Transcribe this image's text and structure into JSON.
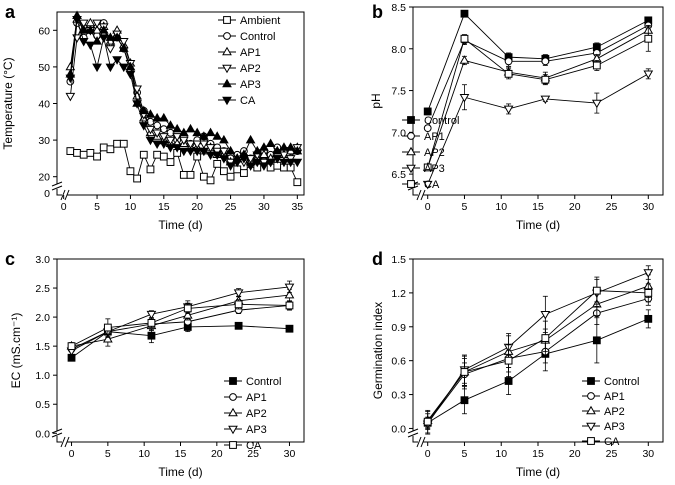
{
  "chart_data": [
    {
      "panel": "a",
      "type": "line",
      "xlabel": "Time (d)",
      "ylabel": "Temperature (°C)",
      "xlim": [
        -1,
        36
      ],
      "ylim": [
        15,
        65
      ],
      "xticks": [
        0,
        5,
        10,
        15,
        20,
        25,
        30,
        35
      ],
      "yticks": [
        20,
        30,
        40,
        50,
        60
      ],
      "ybreak_label": "0",
      "legend": "top-right",
      "x": [
        1,
        2,
        3,
        4,
        5,
        6,
        7,
        8,
        9,
        10,
        11,
        12,
        13,
        14,
        15,
        16,
        17,
        18,
        19,
        20,
        21,
        22,
        23,
        24,
        25,
        26,
        27,
        28,
        29,
        30,
        31,
        32,
        33,
        34,
        35
      ],
      "series": [
        {
          "name": "Ambient",
          "marker": "square-open",
          "values": [
            27,
            26.5,
            26,
            26.5,
            25.5,
            28,
            27.5,
            29,
            29,
            21.5,
            19.5,
            26,
            22,
            26,
            25.5,
            24,
            26.5,
            20.5,
            20.5,
            25.5,
            20,
            19,
            23.5,
            21.5,
            20,
            22,
            21,
            23.5,
            22.5,
            26,
            22.5,
            23,
            22.5,
            22.5,
            18.5
          ]
        },
        {
          "name": "Control",
          "marker": "circle-open",
          "values": [
            46,
            62,
            58,
            60,
            58.5,
            62,
            56,
            58,
            55,
            49,
            43,
            38,
            35,
            34,
            33,
            32,
            30,
            31,
            29,
            30,
            31,
            29,
            28,
            27,
            25,
            26,
            27,
            25,
            26,
            27,
            26,
            28,
            27,
            27,
            27
          ]
        },
        {
          "name": "AP1",
          "marker": "triangle-open",
          "values": [
            50,
            63,
            60,
            62,
            60,
            61,
            57,
            60,
            56,
            51,
            42,
            36,
            32,
            31,
            30,
            29,
            29,
            29,
            28,
            28,
            27,
            28,
            26,
            26,
            24,
            25,
            26,
            24,
            25,
            26,
            25,
            27,
            26,
            27,
            28
          ]
        },
        {
          "name": "AP2",
          "marker": "triangle-down-open",
          "values": [
            42,
            58,
            62,
            60,
            62,
            61,
            55,
            59,
            57,
            51,
            44,
            37,
            33,
            32,
            31,
            30,
            31,
            30,
            29,
            29,
            29,
            28,
            27,
            27,
            24,
            24,
            24,
            25,
            26,
            24,
            24,
            25,
            26,
            25,
            28
          ]
        },
        {
          "name": "AP3",
          "marker": "triangle-filled",
          "values": [
            48,
            64,
            60,
            60,
            57,
            60,
            58,
            58,
            55,
            50,
            40,
            38,
            37,
            36,
            36,
            34,
            33,
            32,
            33,
            32,
            31,
            32,
            31,
            30,
            27,
            25,
            26,
            30,
            27,
            28,
            29,
            27,
            28,
            28,
            27
          ]
        },
        {
          "name": "CA",
          "marker": "triangle-down-filled",
          "values": [
            47,
            63,
            57,
            56,
            50,
            58,
            50,
            52,
            50,
            48,
            40,
            34,
            30,
            29,
            29,
            28,
            28,
            27,
            27,
            27,
            27,
            26,
            26,
            25,
            23,
            24,
            25,
            23,
            24,
            23,
            24,
            25,
            24,
            24,
            24
          ]
        }
      ]
    },
    {
      "panel": "b",
      "type": "line",
      "xlabel": "Time (d)",
      "ylabel": "pH",
      "xlim": [
        -2,
        32
      ],
      "ylim": [
        6.25,
        8.5
      ],
      "xticks": [
        0,
        5,
        10,
        15,
        20,
        25,
        30
      ],
      "yticks": [
        6.5,
        7.0,
        7.5,
        8.0,
        8.5
      ],
      "legend": "bottom-left",
      "x": [
        0,
        5,
        11,
        16,
        23,
        30
      ],
      "series": [
        {
          "name": "Control",
          "marker": "square-filled",
          "values": [
            7.25,
            8.42,
            7.9,
            7.88,
            8.02,
            8.34
          ],
          "errors": [
            0.04,
            0.02,
            0.05,
            0.05,
            0.05,
            0.04
          ]
        },
        {
          "name": "AP1",
          "marker": "circle-open",
          "values": [
            7.05,
            8.1,
            7.85,
            7.85,
            7.95,
            8.28
          ],
          "errors": [
            0.03,
            0.05,
            0.06,
            0.05,
            0.05,
            0.05
          ]
        },
        {
          "name": "AP2",
          "marker": "triangle-open",
          "values": [
            6.58,
            7.86,
            7.72,
            7.65,
            7.88,
            8.22
          ],
          "errors": [
            0.03,
            0.05,
            0.06,
            0.07,
            0.05,
            0.06
          ]
        },
        {
          "name": "AP3",
          "marker": "triangle-down-open",
          "values": [
            6.38,
            7.42,
            7.28,
            7.4,
            7.35,
            7.7
          ],
          "errors": [
            0.03,
            0.15,
            0.06,
            0.03,
            0.12,
            0.06
          ]
        },
        {
          "name": "CA",
          "marker": "square-open",
          "values": [
            6.58,
            8.12,
            7.7,
            7.63,
            7.8,
            8.12
          ],
          "errors": [
            0.03,
            0.05,
            0.06,
            0.06,
            0.06,
            0.15
          ]
        }
      ]
    },
    {
      "panel": "c",
      "type": "line",
      "xlabel": "Time (d)",
      "ylabel": "EC (mS.cm⁻¹)",
      "xlim": [
        -2,
        32
      ],
      "ylim": [
        -0.15,
        3.0
      ],
      "xticks": [
        0,
        5,
        10,
        15,
        20,
        25,
        30
      ],
      "yticks": [
        0.0,
        0.5,
        1.0,
        1.5,
        2.0,
        2.5,
        3.0
      ],
      "legend": "bottom-right",
      "x": [
        0,
        5,
        11,
        16,
        23,
        30
      ],
      "series": [
        {
          "name": "Control",
          "marker": "square-filled",
          "values": [
            1.3,
            1.75,
            1.68,
            1.83,
            1.85,
            1.8
          ],
          "errors": [
            0.05,
            0.05,
            0.12,
            0.08,
            0.02,
            0.04
          ]
        },
        {
          "name": "AP1",
          "marker": "circle-open",
          "values": [
            1.45,
            1.75,
            1.88,
            1.92,
            2.12,
            2.2
          ],
          "errors": [
            0.05,
            0.12,
            0.1,
            0.1,
            0.06,
            0.08
          ]
        },
        {
          "name": "AP2",
          "marker": "triangle-open",
          "values": [
            1.5,
            1.62,
            1.85,
            2.03,
            2.28,
            2.38
          ],
          "errors": [
            0.06,
            0.12,
            0.08,
            0.08,
            0.08,
            0.1
          ]
        },
        {
          "name": "AP3",
          "marker": "triangle-down-open",
          "values": [
            1.42,
            1.75,
            2.05,
            2.18,
            2.42,
            2.52
          ],
          "errors": [
            0.08,
            0.1,
            0.06,
            0.1,
            0.07,
            0.1
          ]
        },
        {
          "name": "CA",
          "marker": "square-open",
          "values": [
            1.5,
            1.82,
            1.9,
            2.15,
            2.22,
            2.2
          ],
          "errors": [
            0.05,
            0.15,
            0.08,
            0.09,
            0.08,
            0.07
          ]
        }
      ]
    },
    {
      "panel": "d",
      "type": "line",
      "xlabel": "Time (d)",
      "ylabel": "Germination index",
      "xlim": [
        -2,
        32
      ],
      "ylim": [
        -0.12,
        1.5
      ],
      "xticks": [
        0,
        5,
        10,
        15,
        20,
        25,
        30
      ],
      "yticks": [
        0.0,
        0.3,
        0.6,
        0.9,
        1.2,
        1.5
      ],
      "legend": "bottom-right",
      "x": [
        0,
        5,
        11,
        16,
        23,
        30
      ],
      "series": [
        {
          "name": "Control",
          "marker": "square-filled",
          "values": [
            0.05,
            0.25,
            0.42,
            0.66,
            0.78,
            0.97
          ],
          "errors": [
            0.1,
            0.12,
            0.12,
            0.15,
            0.2,
            0.08
          ]
        },
        {
          "name": "AP1",
          "marker": "circle-open",
          "values": [
            0.05,
            0.48,
            0.62,
            0.68,
            1.02,
            1.15
          ],
          "errors": [
            0.05,
            0.1,
            0.12,
            0.1,
            0.1,
            0.06
          ]
        },
        {
          "name": "AP2",
          "marker": "triangle-open",
          "values": [
            0.07,
            0.5,
            0.68,
            0.78,
            1.1,
            1.26
          ],
          "errors": [
            0.06,
            0.12,
            0.14,
            0.1,
            0.1,
            0.1
          ]
        },
        {
          "name": "AP3",
          "marker": "triangle-down-open",
          "values": [
            0.04,
            0.52,
            0.72,
            1.01,
            1.2,
            1.38
          ],
          "errors": [
            0.05,
            0.12,
            0.12,
            0.16,
            0.12,
            0.06
          ]
        },
        {
          "name": "CA",
          "marker": "square-open",
          "values": [
            0.06,
            0.5,
            0.6,
            0.8,
            1.22,
            1.2
          ],
          "errors": [
            0.1,
            0.15,
            0.14,
            0.15,
            0.12,
            0.08
          ]
        }
      ]
    }
  ]
}
